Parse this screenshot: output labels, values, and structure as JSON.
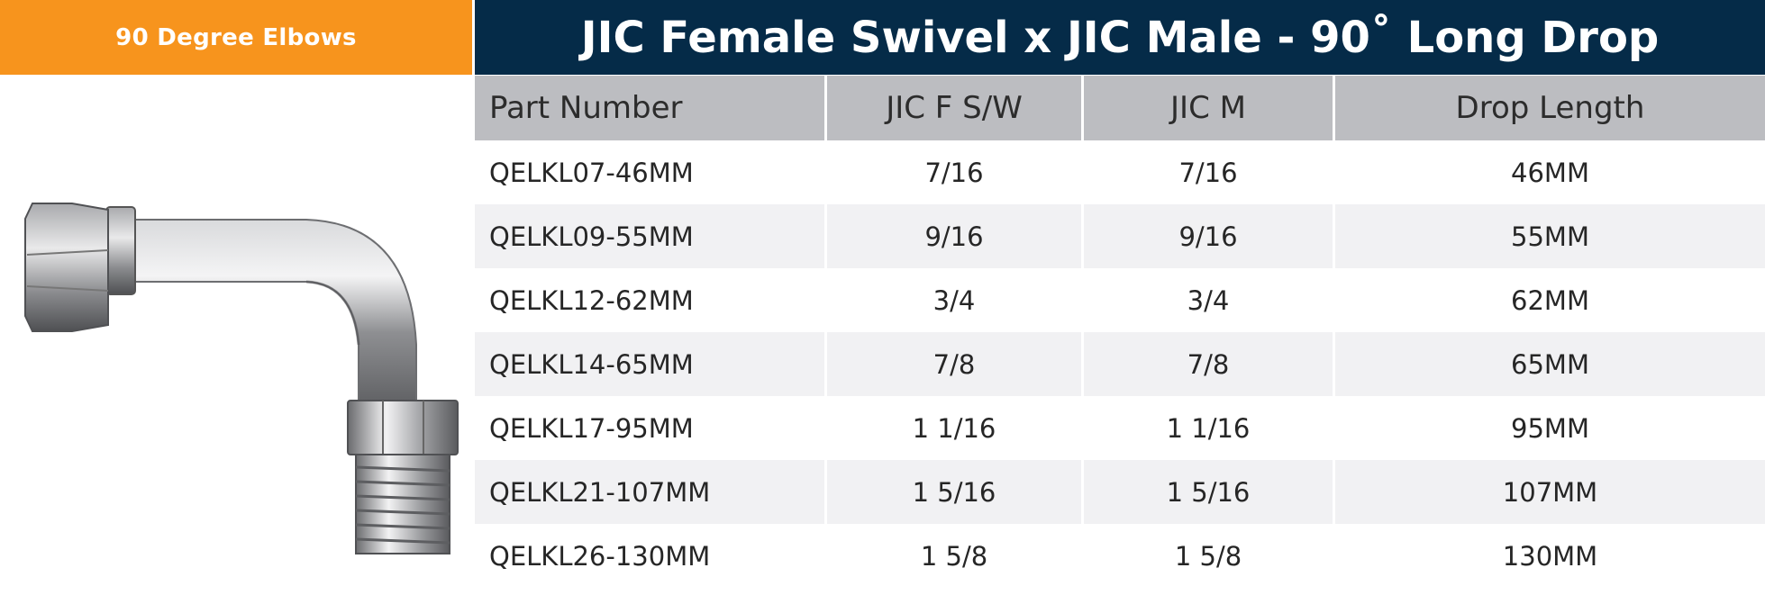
{
  "category": "90 Degree Elbows",
  "title": "JIC Female Swivel x JIC Male - 90˚ Long Drop",
  "image_alt": "fitting-photo",
  "table": {
    "headers": [
      "Part Number",
      "JIC F S/W",
      "JIC M",
      "Drop Length"
    ],
    "rows": [
      [
        "QELKL07-46MM",
        "7/16",
        "7/16",
        "46MM"
      ],
      [
        "QELKL09-55MM",
        "9/16",
        "9/16",
        "55MM"
      ],
      [
        "QELKL12-62MM",
        "3/4",
        "3/4",
        "62MM"
      ],
      [
        "QELKL14-65MM",
        "7/8",
        "7/8",
        "65MM"
      ],
      [
        "QELKL17-95MM",
        "1 1/16",
        "1 1/16",
        "95MM"
      ],
      [
        "QELKL21-107MM",
        "1 5/16",
        "1 5/16",
        "107MM"
      ],
      [
        "QELKL26-130MM",
        "1 5/8",
        "1 5/8",
        "130MM"
      ]
    ]
  },
  "colors": {
    "accent_orange": "#f7941d",
    "title_navy": "#052b48",
    "header_gray": "#bcbdc1",
    "row_alt": "#f1f1f3"
  }
}
